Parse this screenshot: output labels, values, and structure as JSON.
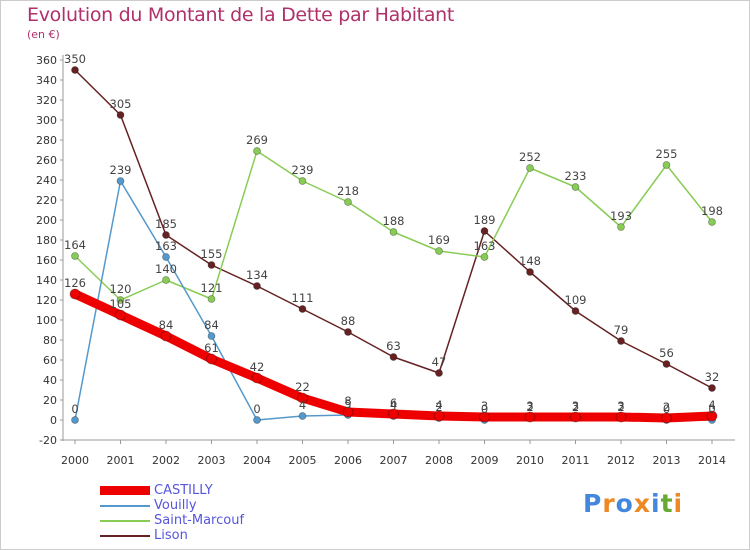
{
  "title": "Evolution du Montant de la Dette par Habitant",
  "subtitle": "(en €)",
  "chart_data": {
    "type": "line",
    "title": "Evolution du Montant de la Dette par Habitant",
    "ylabel": "(en €)",
    "xlabel": "",
    "x": [
      "2000",
      "2001",
      "2002",
      "2003",
      "2004",
      "2005",
      "2006",
      "2007",
      "2008",
      "2009",
      "2010",
      "2011",
      "2012",
      "2013",
      "2014"
    ],
    "ylim": [
      -20,
      360
    ],
    "yticks": [
      -20,
      0,
      20,
      40,
      60,
      80,
      100,
      120,
      140,
      160,
      180,
      200,
      220,
      240,
      260,
      280,
      300,
      320,
      340,
      360
    ],
    "grid": false,
    "legend_position": "bottom-left",
    "series": [
      {
        "name": "Lison",
        "color": "#662222",
        "values": [
          350,
          305,
          185,
          155,
          134,
          111,
          88,
          63,
          47,
          189,
          148,
          109,
          79,
          56,
          32
        ]
      },
      {
        "name": "Saint-Marcouf",
        "color": "#88cc55",
        "values": [
          164,
          120,
          140,
          121,
          269,
          239,
          218,
          188,
          169,
          163,
          252,
          233,
          193,
          255,
          198
        ]
      },
      {
        "name": "Vouilly",
        "color": "#5599cc",
        "values": [
          0,
          239,
          163,
          84,
          0,
          4,
          5,
          4,
          2,
          0,
          2,
          2,
          2,
          0,
          0
        ]
      },
      {
        "name": "CASTILLY",
        "color": "#ee0000",
        "values": [
          126,
          105,
          84,
          61,
          42,
          22,
          8,
          6,
          4,
          3,
          3,
          3,
          3,
          2,
          4
        ]
      }
    ],
    "point_labels": {
      "Lison": [
        "350",
        "305",
        "185",
        "155",
        "134",
        "111",
        "88",
        "63",
        "47",
        "189",
        "148",
        "109",
        "79",
        "56",
        "32"
      ],
      "Saint-Marcouf": [
        "164",
        "120",
        "140",
        "121",
        "269",
        "239",
        "218",
        "188",
        "169",
        "163",
        "252",
        "233",
        "193",
        "255",
        "198"
      ],
      "Vouilly": [
        "0",
        "239",
        "163",
        "84",
        "0",
        "4",
        "5",
        "4",
        "2",
        "0",
        "2",
        "2",
        "2",
        "0",
        "0"
      ],
      "CASTILLY": [
        "126",
        "105",
        "84",
        "61",
        "42",
        "22",
        "8",
        "6",
        "4",
        "3",
        "3",
        "3",
        "3",
        "2",
        "4"
      ]
    }
  },
  "legend": {
    "items": [
      {
        "label": "CASTILLY",
        "color": "#ee0000"
      },
      {
        "label": "Vouilly",
        "color": "#5599cc"
      },
      {
        "label": "Saint-Marcouf",
        "color": "#88cc55"
      },
      {
        "label": "Lison",
        "color": "#662222"
      }
    ]
  },
  "logo": {
    "text": "Proxiti",
    "colors": [
      "#4488dd",
      "#ee8822",
      "#4488dd",
      "#ee8822",
      "#4488dd",
      "#66aa33",
      "#ee8822"
    ]
  }
}
